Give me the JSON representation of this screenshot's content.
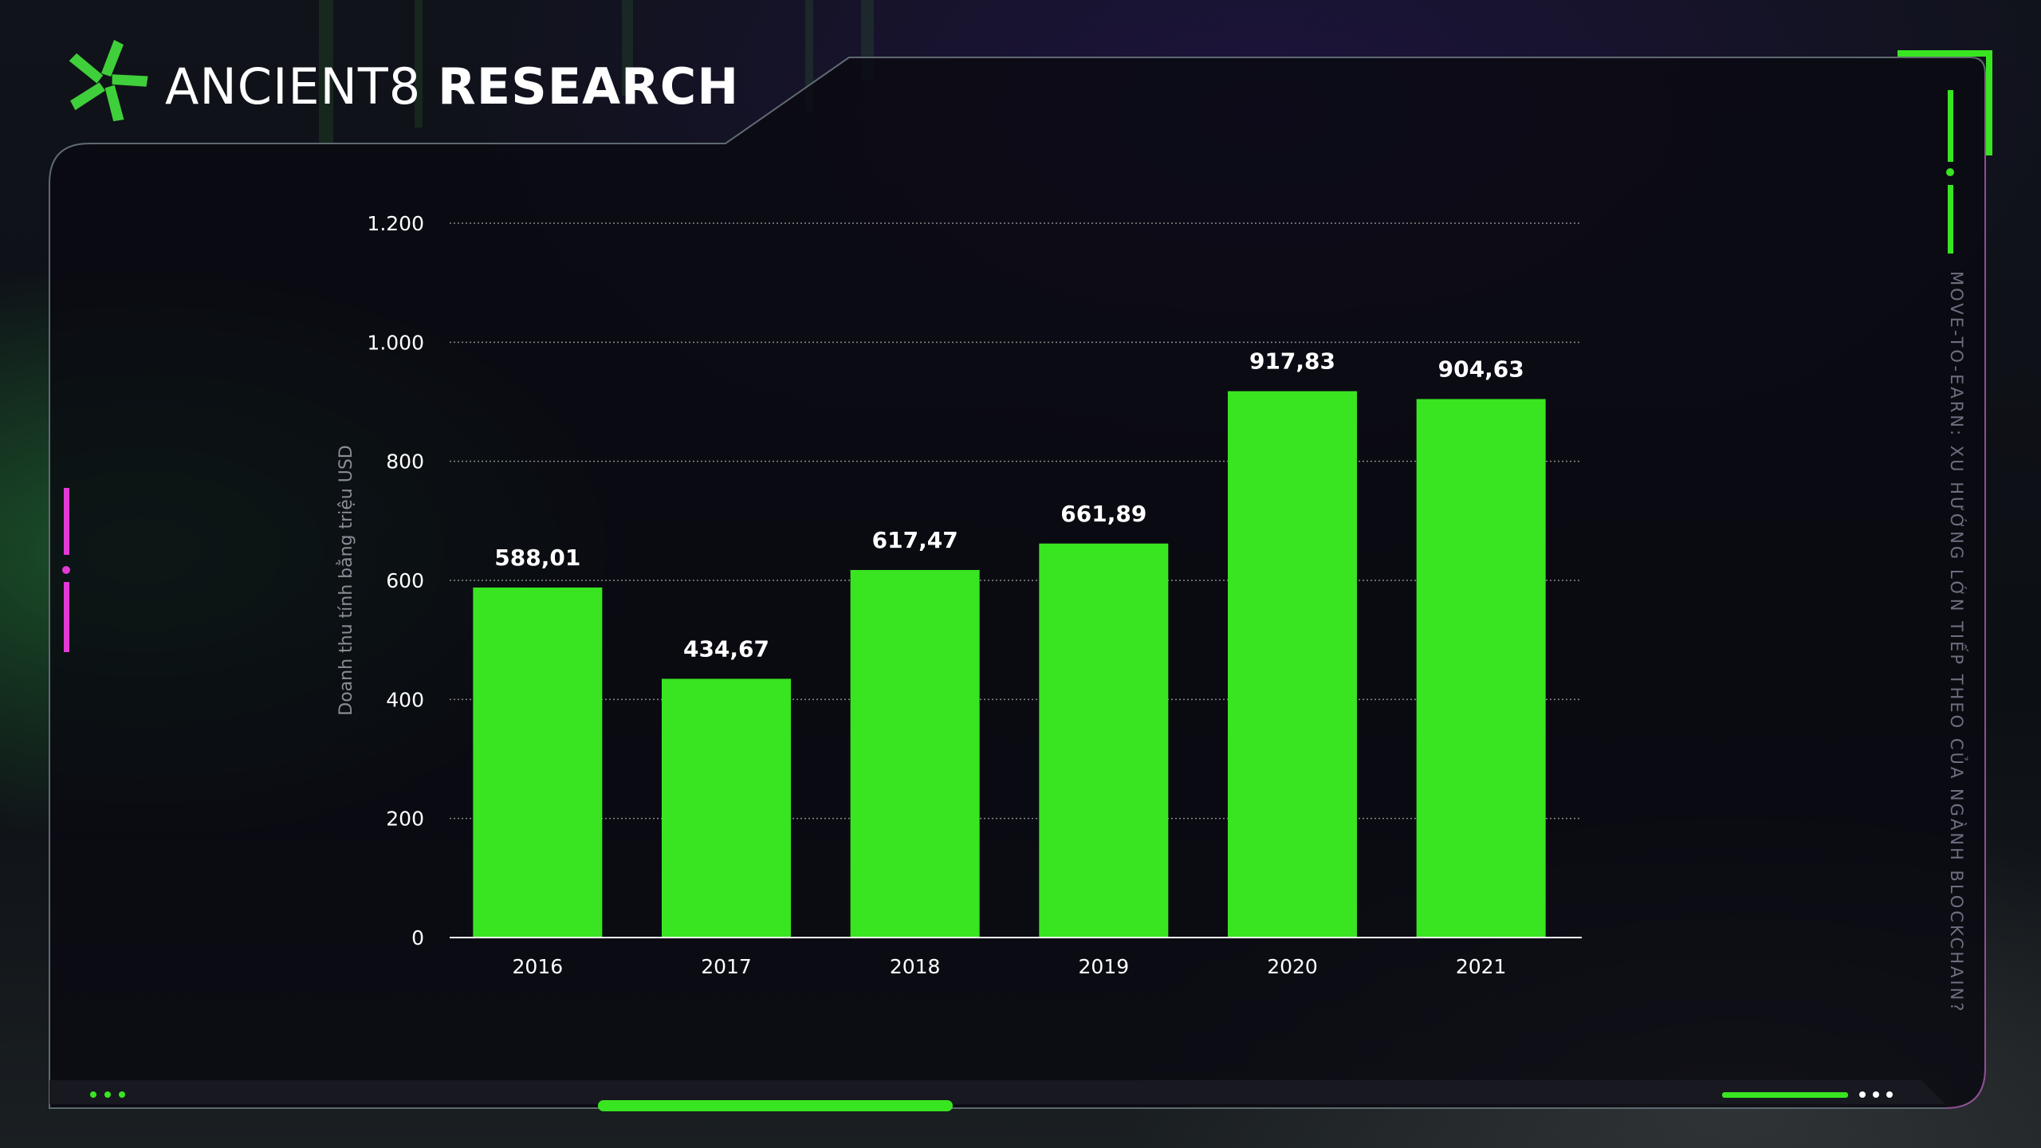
{
  "brand": {
    "name_light": "ANCIENT8",
    "name_bold": "RESEARCH"
  },
  "side_caption": "MOVE-TO-EARN: XU HƯỚNG LỚN TIẾP THEO CỦA NGÀNH BLOCKCHAIN?",
  "colors": {
    "bar": "#39e521",
    "frame_green": "#39e521",
    "accent_magenta": "#e23ad6",
    "panel": "#0b0b12"
  },
  "chart_data": {
    "type": "bar",
    "categories": [
      "2016",
      "2017",
      "2018",
      "2019",
      "2020",
      "2021"
    ],
    "values": [
      588.01,
      434.67,
      617.47,
      661.89,
      917.83,
      904.63
    ],
    "value_labels": [
      "588,01",
      "434,67",
      "617,47",
      "661,89",
      "917,83",
      "904,63"
    ],
    "ylabel": "Doanh thu tính bằng triệu USD",
    "ylim": [
      0,
      1200
    ],
    "yticks": [
      0,
      200,
      400,
      600,
      800,
      1000,
      1200
    ],
    "ytick_labels": [
      "0",
      "200",
      "400",
      "600",
      "800",
      "1.000",
      "1.200"
    ],
    "grid": true,
    "legend": "none"
  }
}
